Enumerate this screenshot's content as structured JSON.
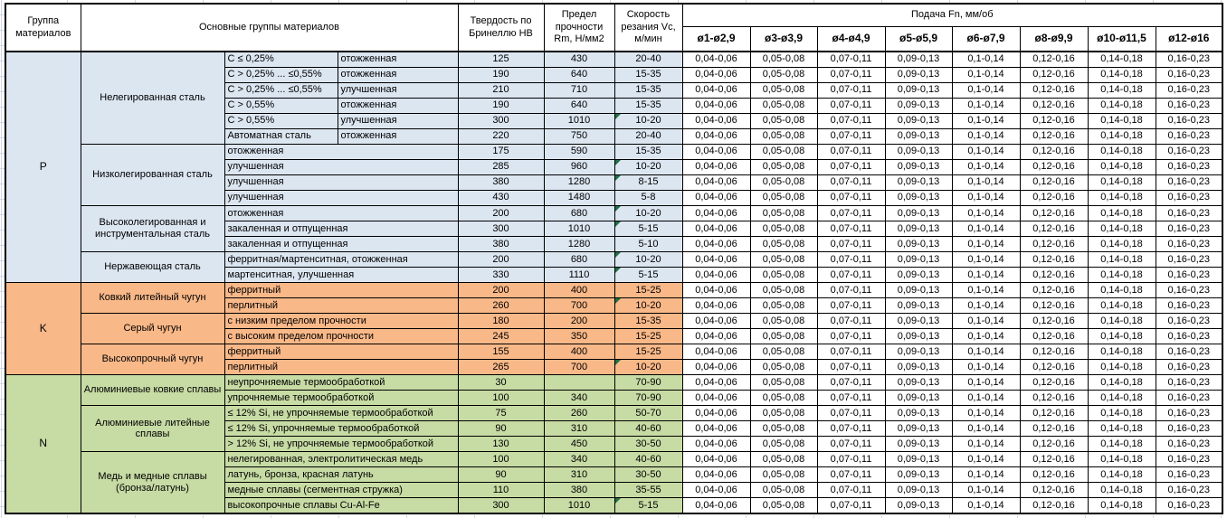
{
  "header": {
    "col_group": "Группа материалов",
    "col_family": "Основные группы материалов",
    "col_hb": "Твердость по Бринеллю НВ",
    "col_rm": "Предел прочности Rm, Н/мм2",
    "col_vc": "Скорость резания Vc, м/мин",
    "col_feed": "Подача Fn, мм/об",
    "feed_cols": [
      "ø1-ø2,9",
      "ø3-ø3,9",
      "ø4-ø4,9",
      "ø5-ø5,9",
      "ø6-ø7,9",
      "ø8-ø9,9",
      "ø10-ø11,5",
      "ø12-ø16"
    ]
  },
  "feed_values": [
    "0,04-0,06",
    "0,05-0,08",
    "0,07-0,11",
    "0,09-0,13",
    "0,1-0,14",
    "0,12-0,16",
    "0,14-0,18",
    "0,16-0,23"
  ],
  "colors": {
    "group_p": "#dce6f1",
    "group_k": "#f9b888",
    "group_n": "#c7dba4",
    "flag": "#1e7145",
    "gridline": "#d0d7e5"
  },
  "groups": [
    {
      "label": "P",
      "color": "#dce6f1",
      "families": [
        {
          "name": "Нелегированная сталь",
          "rows": [
            {
              "c1": "C ≤ 0,25%",
              "c2": "отожженная",
              "hb": "125",
              "rm": "430",
              "vc": "20-40",
              "flag": false
            },
            {
              "c1": "C > 0,25% ... ≤0,55%",
              "c2": "отожженная",
              "hb": "190",
              "rm": "640",
              "vc": "15-35",
              "flag": false
            },
            {
              "c1": "C > 0,25% ... ≤0,55%",
              "c2": "улучшенная",
              "hb": "210",
              "rm": "710",
              "vc": "15-35",
              "flag": false
            },
            {
              "c1": "C > 0,55%",
              "c2": "отожженная",
              "hb": "190",
              "rm": "640",
              "vc": "15-35",
              "flag": false
            },
            {
              "c1": "C > 0,55%",
              "c2": "улучшенная",
              "hb": "300",
              "rm": "1010",
              "vc": "10-20",
              "flag": true
            },
            {
              "c1": "Автоматная сталь",
              "c2": "отожженная",
              "hb": "220",
              "rm": "750",
              "vc": "20-40",
              "flag": false
            }
          ]
        },
        {
          "name": "Низколегированная сталь",
          "rows": [
            {
              "desc": "отожженная",
              "hb": "175",
              "rm": "590",
              "vc": "15-35",
              "flag": false
            },
            {
              "desc": "улучшенная",
              "hb": "285",
              "rm": "960",
              "vc": "10-20",
              "flag": true
            },
            {
              "desc": "улучшенная",
              "hb": "380",
              "rm": "1280",
              "vc": "8-15",
              "flag": true
            },
            {
              "desc": "улучшенная",
              "hb": "430",
              "rm": "1480",
              "vc": "5-8",
              "flag": false
            }
          ]
        },
        {
          "name": "Высоколегированная и инструментальная сталь",
          "rows": [
            {
              "desc": "отожженная",
              "hb": "200",
              "rm": "680",
              "vc": "10-20",
              "flag": true
            },
            {
              "desc": "закаленная и отпущенная",
              "hb": "300",
              "rm": "1010",
              "vc": "5-15",
              "flag": true
            },
            {
              "desc": "закаленная и отпущенная",
              "hb": "380",
              "rm": "1280",
              "vc": "5-10",
              "flag": false
            }
          ]
        },
        {
          "name": "Нержавеющая сталь",
          "rows": [
            {
              "desc": "ферритная/мартенситная, отожженная",
              "hb": "200",
              "rm": "680",
              "vc": "10-20",
              "flag": true
            },
            {
              "desc": "мартенситная, улучшенная",
              "hb": "330",
              "rm": "1110",
              "vc": "5-15",
              "flag": true
            }
          ]
        }
      ]
    },
    {
      "label": "K",
      "color": "#f9b888",
      "families": [
        {
          "name": "Ковкий литейный чугун",
          "rows": [
            {
              "desc": "ферритный",
              "hb": "200",
              "rm": "400",
              "vc": "15-25",
              "flag": false
            },
            {
              "desc": "перлитный",
              "hb": "260",
              "rm": "700",
              "vc": "10-20",
              "flag": true
            }
          ]
        },
        {
          "name": "Серый чугун",
          "rows": [
            {
              "desc": "с низким пределом прочности",
              "hb": "180",
              "rm": "200",
              "vc": "15-35",
              "flag": false
            },
            {
              "desc": "с высоким пределом прочности",
              "hb": "245",
              "rm": "350",
              "vc": "15-25",
              "flag": false
            }
          ]
        },
        {
          "name": "Высокопрочный чугун",
          "rows": [
            {
              "desc": "ферритный",
              "hb": "155",
              "rm": "400",
              "vc": "15-25",
              "flag": false
            },
            {
              "desc": "перлитный",
              "hb": "265",
              "rm": "700",
              "vc": "10-20",
              "flag": true
            }
          ]
        }
      ]
    },
    {
      "label": "N",
      "color": "#c7dba4",
      "families": [
        {
          "name": "Алюминиевые ковкие сплавы",
          "rows": [
            {
              "desc": "неупрочняемые термообработкой",
              "hb": "30",
              "rm": "",
              "vc": "70-90",
              "flag": false
            },
            {
              "desc": "упрочняемые термообработкой",
              "hb": "100",
              "rm": "340",
              "vc": "70-90",
              "flag": false
            }
          ]
        },
        {
          "name": "Алюминиевые литейные сплавы",
          "rows": [
            {
              "desc": "≤ 12% Si, не упрочняемые термообработкой",
              "hb": "75",
              "rm": "260",
              "vc": "50-70",
              "flag": false
            },
            {
              "desc": "≤ 12% Si, упрочняемые термообработкой",
              "hb": "90",
              "rm": "310",
              "vc": "40-60",
              "flag": false
            },
            {
              "desc": "> 12% Si, не упрочняемые термообработкой",
              "hb": "130",
              "rm": "450",
              "vc": "30-50",
              "flag": false
            }
          ]
        },
        {
          "name": "Медь и медные сплавы (бронза/латунь)",
          "rows": [
            {
              "desc": "нелегированная, электролитическая медь",
              "hb": "100",
              "rm": "340",
              "vc": "40-60",
              "flag": false
            },
            {
              "desc": "латунь, бронза, красная латунь",
              "hb": "90",
              "rm": "310",
              "vc": "30-50",
              "flag": false
            },
            {
              "desc": "медные сплавы (сегментная стружка)",
              "hb": "110",
              "rm": "380",
              "vc": "35-55",
              "flag": false
            },
            {
              "desc": "высокопрочные сплавы Cu-Al-Fe",
              "hb": "300",
              "rm": "1010",
              "vc": "5-15",
              "flag": true
            }
          ]
        }
      ]
    }
  ]
}
